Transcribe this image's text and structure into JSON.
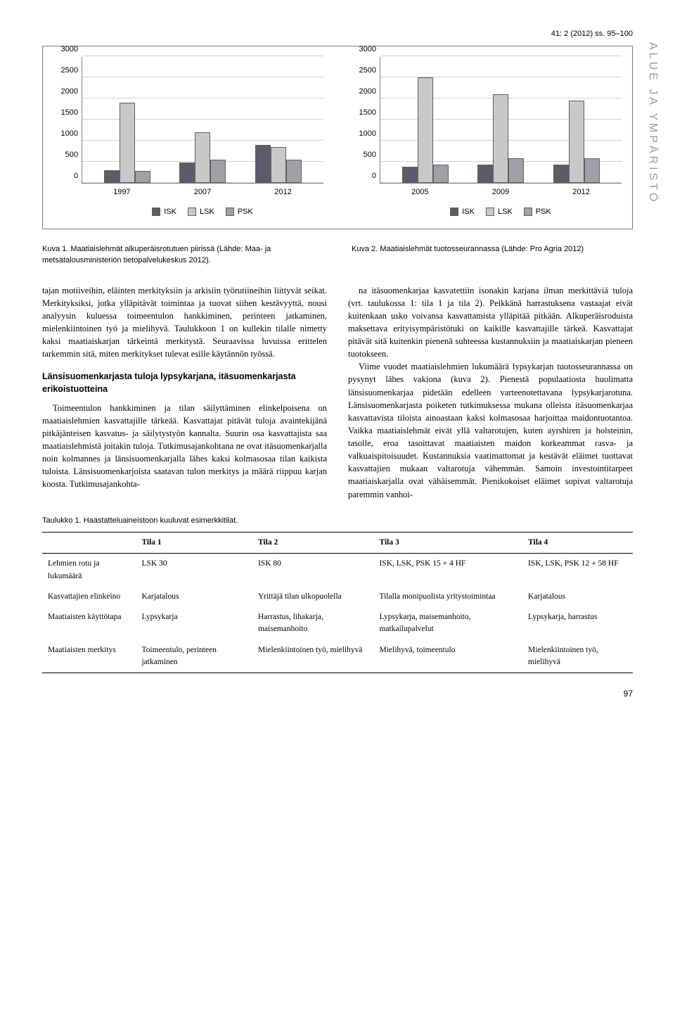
{
  "header": {
    "journal_ref": "41: 2 (2012) ss. 95–100",
    "sidebar_label": "ALUE JA YMPÄRISTÖ"
  },
  "chart1": {
    "type": "bar",
    "categories": [
      "1997",
      "2007",
      "2012"
    ],
    "series": [
      "ISK",
      "LSK",
      "PSK"
    ],
    "values": [
      [
        300,
        1900,
        280
      ],
      [
        480,
        1200,
        540
      ],
      [
        900,
        850,
        540
      ]
    ],
    "colors": [
      "#5b5b6b",
      "#c8c8c8",
      "#a0a0a8"
    ],
    "ylim": [
      0,
      3000
    ],
    "ytick_step": 500,
    "grid_color": "#d0d0d0",
    "axis_color": "#808080"
  },
  "chart2": {
    "type": "bar",
    "categories": [
      "2005",
      "2009",
      "2012"
    ],
    "series": [
      "ISK",
      "LSK",
      "PSK"
    ],
    "values": [
      [
        380,
        2500,
        430
      ],
      [
        420,
        2100,
        580
      ],
      [
        420,
        1950,
        580
      ]
    ],
    "colors": [
      "#5b5b6b",
      "#c8c8c8",
      "#a0a0a8"
    ],
    "ylim": [
      0,
      3000
    ],
    "ytick_step": 500,
    "grid_color": "#d0d0d0",
    "axis_color": "#808080"
  },
  "captions": {
    "fig1": "Kuva 1. Maatiaislehmät alkuperäisrotutuen piirissä (Lähde: Maa- ja metsätalousministeriön tietopalvelukeskus 2012).",
    "fig2": "Kuva 2. Maatiaislehmät tuotosseurannassa (Lähde: Pro Agria 2012)"
  },
  "body": {
    "p1": "tajan motiiveihin, eläinten merkityksiin ja arkisiin työrutiineihin liittyvät seikat. Merkityksiksi, jotka ylläpitävät toimintaa ja tuovat siihen kestävyyttä, nousi analyysin kuluessa toimeentulon hankkiminen, perinteen jatkaminen, mielenkiintoinen työ ja mielihyvä. Taulukkoon 1 on kullekin tilalle nimetty kaksi maatiaiskarjan tärkeintä merkitystä. Seuraavissa luvuissa erittelen tarkemmin sitä, miten merkitykset tulevat esille käytännön työssä.",
    "h1": "Länsisuomenkarjasta tuloja lypsykarjana, itäsuomenkarjasta erikoistuotteina",
    "p2": "Toimeentulon hankkiminen ja tilan säilyttäminen elinkelpoisena on maatiaislehmien kasvattajille tärkeää. Kasvattajat pitävät tuloja avaintekijänä pitkäjänteisen kasvatus- ja säilytystyön kannalta. Suurin osa kasvattajista saa maatiaislehmistä joitakin tuloja. Tutkimusajankohtana ne ovat itäsuomenkarjalla noin kolmannes ja länsisuomenkarjalla lähes kaksi kolmasosaa tilan kaikista tuloista. Länsisuomenkarjoista saatavan tulon merkitys ja määrä riippuu karjan koosta. Tutkimusajankohta-",
    "p3": "na itäsuomenkarjaa kasvatettiin isonakin karjana ilman merkittäviä tuloja (vrt. taulukossa 1: tila 1 ja tila 2). Pelkkänä harrastuksena vastaajat eivät kuitenkaan usko voivansa kasvattamista ylläpitää pitkään. Alkuperäisroduista maksettava erityisympäristötuki on kaikille kasvattajille tärkeä. Kasvattajat pitävät sitä kuitenkin pienenä suhteessa kustannuksiin ja maatiaiskarjan pieneen tuotokseen.",
    "p4": "Viime vuodet maatiaislehmien lukumäärä lypsykarjan tuotosseurannassa on pysynyt lähes vakiona (kuva 2). Pienestä populaatiosta huolimatta länsisuomenkarjaa pidetään edelleen varteenotettavana lypsykarjarotuna. Länsisuomenkarjasta poiketen tutkimuksessa mukana olleista itäsuomenkarjaa kasvattavista tiloista ainoastaan kaksi kolmasosaa harjoittaa maidontuotantoa. Vaikka maatiaislehmät eivät yllä valtarotujen, kuten ayrshiren ja holsteinin, tasolle, eroa tasoittavat maatiaisten maidon korkeammat rasva- ja valkuaispitoisuudet. Kustannuksia vaatimattomat ja kestävät eläimet tuottavat kasvattajien mukaan valtarotuja vähemmän. Samoin investointitarpeet maatiaiskarjalla ovat vähäisemmät. Pienikokoiset eläimet sopivat valtarotuja paremmin vanhoi-"
  },
  "table": {
    "caption": "Taulukko 1. Haastatteluaineistoon kuuluvat esimerkkitilat.",
    "columns": [
      "",
      "Tila 1",
      "Tila 2",
      "Tila 3",
      "Tila 4"
    ],
    "rows": [
      [
        "Lehmien rotu ja lukumäärä",
        "LSK 30",
        "ISK 80",
        "ISK, LSK, PSK 15 + 4 HF",
        "ISK, LSK, PSK 12 + 58 HF"
      ],
      [
        "Kasvattajien elinkeino",
        "Karjatalous",
        "Yrittäjä tilan ulkopuolella",
        "Tilalla monipuolista yritystoimintaa",
        "Karjatalous"
      ],
      [
        "Maatiaisten käyttötapa",
        "Lypsykarja",
        "Harrastus, lihakarja, maisemanhoito",
        "Lypsykarja, maisemanhoito, matkailupalvelut",
        "Lypsykarja, harrastus"
      ],
      [
        "Maatiaisten merkitys",
        "Toimeentulo, perinteen jatkaminen",
        "Mielenkiintoinen työ, mielihyvä",
        "Mielihyvä, toimeentulo",
        "Mielenkiintoinen työ, mielihyvä"
      ]
    ]
  },
  "page_number": "97"
}
